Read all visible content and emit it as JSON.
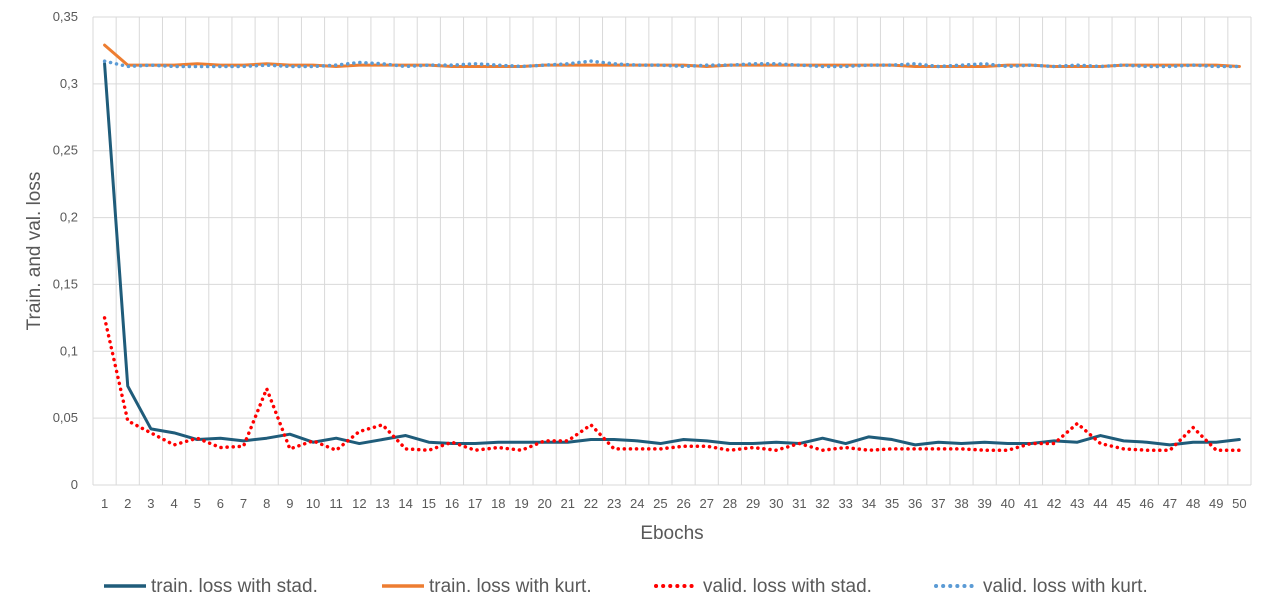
{
  "chart_data": {
    "type": "line",
    "xlabel": "Ebochs",
    "ylabel": "Train. and val. loss",
    "ylim": [
      0,
      0.35
    ],
    "yticks": [
      "0",
      "0,05",
      "0,1",
      "0,15",
      "0,2",
      "0,25",
      "0,3",
      "0,35"
    ],
    "categories": [
      "1",
      "2",
      "3",
      "4",
      "5",
      "6",
      "7",
      "8",
      "9",
      "10",
      "11",
      "12",
      "13",
      "14",
      "15",
      "16",
      "17",
      "18",
      "19",
      "20",
      "21",
      "22",
      "23",
      "24",
      "25",
      "26",
      "27",
      "28",
      "29",
      "30",
      "31",
      "32",
      "33",
      "34",
      "35",
      "36",
      "37",
      "38",
      "39",
      "40",
      "41",
      "42",
      "43",
      "44",
      "45",
      "46",
      "47",
      "48",
      "49",
      "50"
    ],
    "grid": true,
    "legend_position": "bottom",
    "series": [
      {
        "name": "train. loss with stad.",
        "color": "#1f5c7a",
        "style": "solid",
        "values": [
          0.315,
          0.074,
          0.042,
          0.039,
          0.034,
          0.035,
          0.033,
          0.035,
          0.038,
          0.032,
          0.035,
          0.031,
          0.034,
          0.037,
          0.032,
          0.031,
          0.031,
          0.032,
          0.032,
          0.032,
          0.032,
          0.034,
          0.034,
          0.033,
          0.031,
          0.034,
          0.033,
          0.031,
          0.031,
          0.032,
          0.031,
          0.035,
          0.031,
          0.036,
          0.034,
          0.03,
          0.032,
          0.031,
          0.032,
          0.031,
          0.031,
          0.033,
          0.032,
          0.037,
          0.033,
          0.032,
          0.03,
          0.032,
          0.032,
          0.034
        ]
      },
      {
        "name": "train. loss with kurt.",
        "color": "#ed7d31",
        "style": "solid",
        "values": [
          0.329,
          0.314,
          0.314,
          0.314,
          0.315,
          0.314,
          0.314,
          0.315,
          0.314,
          0.314,
          0.313,
          0.314,
          0.314,
          0.314,
          0.314,
          0.313,
          0.313,
          0.313,
          0.313,
          0.314,
          0.314,
          0.314,
          0.314,
          0.314,
          0.314,
          0.314,
          0.313,
          0.314,
          0.314,
          0.314,
          0.314,
          0.314,
          0.314,
          0.314,
          0.314,
          0.313,
          0.313,
          0.313,
          0.313,
          0.314,
          0.314,
          0.313,
          0.313,
          0.313,
          0.314,
          0.314,
          0.314,
          0.314,
          0.314,
          0.313
        ]
      },
      {
        "name": "valid. loss with stad.",
        "color": "#ff0000",
        "style": "dotted",
        "values": [
          0.125,
          0.048,
          0.039,
          0.03,
          0.035,
          0.028,
          0.029,
          0.072,
          0.027,
          0.033,
          0.026,
          0.04,
          0.045,
          0.027,
          0.026,
          0.032,
          0.026,
          0.028,
          0.026,
          0.033,
          0.033,
          0.045,
          0.027,
          0.027,
          0.027,
          0.029,
          0.029,
          0.026,
          0.028,
          0.026,
          0.031,
          0.026,
          0.028,
          0.026,
          0.027,
          0.027,
          0.027,
          0.027,
          0.026,
          0.026,
          0.031,
          0.031,
          0.046,
          0.031,
          0.027,
          0.026,
          0.026,
          0.043,
          0.026,
          0.026
        ]
      },
      {
        "name": "valid. loss with kurt.",
        "color": "#5b9bd5",
        "style": "dotted",
        "values": [
          0.317,
          0.313,
          0.314,
          0.313,
          0.313,
          0.313,
          0.313,
          0.314,
          0.313,
          0.313,
          0.314,
          0.316,
          0.315,
          0.313,
          0.314,
          0.314,
          0.315,
          0.314,
          0.313,
          0.314,
          0.315,
          0.317,
          0.315,
          0.314,
          0.314,
          0.313,
          0.314,
          0.314,
          0.315,
          0.315,
          0.314,
          0.313,
          0.313,
          0.314,
          0.314,
          0.315,
          0.313,
          0.314,
          0.315,
          0.313,
          0.314,
          0.313,
          0.314,
          0.313,
          0.314,
          0.313,
          0.313,
          0.314,
          0.313,
          0.313
        ]
      }
    ]
  }
}
